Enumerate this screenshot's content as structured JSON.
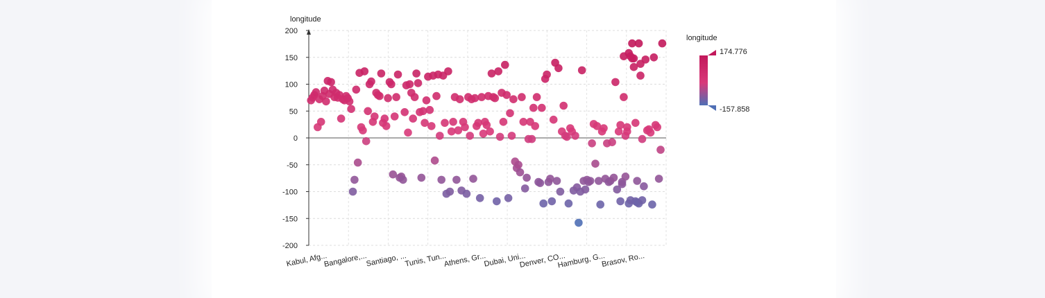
{
  "chart_data": {
    "type": "scatter",
    "ylabel": "longitude",
    "ylim": [
      -200,
      200
    ],
    "yticks": [
      200,
      150,
      100,
      50,
      0,
      -50,
      -100,
      -150,
      -200
    ],
    "category_labels": [
      "Kabul, Afg...",
      "Bangalore,...",
      "Santiago, ...",
      "Tunis, Tun...",
      "Athens, Gr...",
      "Dubai, Uni...",
      "Denver, CO...",
      "Hamburg, G...",
      "Brasov, Ro..."
    ],
    "n_categories": 200,
    "grid": true,
    "legend": {
      "title": "longitude",
      "max_label": "174.776",
      "min_label": "-157.858",
      "max": 174.776,
      "min": -157.858,
      "color_high": "#c2185b",
      "color_mid": "#d83a7a",
      "color_low": "#4f6fb5"
    },
    "points": [
      [
        1,
        70
      ],
      [
        2,
        75
      ],
      [
        3,
        80
      ],
      [
        4,
        85
      ],
      [
        5,
        20
      ],
      [
        6,
        72
      ],
      [
        7,
        30
      ],
      [
        8,
        78
      ],
      [
        9,
        88
      ],
      [
        10,
        68
      ],
      [
        11,
        106
      ],
      [
        12,
        82
      ],
      [
        13,
        104
      ],
      [
        14,
        90
      ],
      [
        15,
        76
      ],
      [
        16,
        84
      ],
      [
        17,
        75
      ],
      [
        18,
        80
      ],
      [
        19,
        36
      ],
      [
        20,
        72
      ],
      [
        21,
        70
      ],
      [
        22,
        78
      ],
      [
        23,
        74
      ],
      [
        24,
        68
      ],
      [
        25,
        54
      ],
      [
        26,
        -100
      ],
      [
        27,
        -78
      ],
      [
        28,
        90
      ],
      [
        29,
        -46
      ],
      [
        30,
        121
      ],
      [
        31,
        20
      ],
      [
        32,
        14
      ],
      [
        33,
        124
      ],
      [
        34,
        -6
      ],
      [
        35,
        50
      ],
      [
        36,
        100
      ],
      [
        37,
        105
      ],
      [
        38,
        30
      ],
      [
        39,
        40
      ],
      [
        40,
        84
      ],
      [
        41,
        80
      ],
      [
        42,
        78
      ],
      [
        43,
        120
      ],
      [
        44,
        28
      ],
      [
        45,
        36
      ],
      [
        46,
        22
      ],
      [
        47,
        74
      ],
      [
        48,
        104
      ],
      [
        49,
        100
      ],
      [
        50,
        -68
      ],
      [
        51,
        40
      ],
      [
        52,
        76
      ],
      [
        53,
        118
      ],
      [
        54,
        -74
      ],
      [
        55,
        -72
      ],
      [
        56,
        -78
      ],
      [
        57,
        48
      ],
      [
        58,
        98
      ],
      [
        59,
        10
      ],
      [
        60,
        100
      ],
      [
        61,
        84
      ],
      [
        62,
        36
      ],
      [
        63,
        76
      ],
      [
        64,
        120
      ],
      [
        65,
        102
      ],
      [
        66,
        48
      ],
      [
        67,
        -74
      ],
      [
        68,
        50
      ],
      [
        69,
        28
      ],
      [
        70,
        70
      ],
      [
        71,
        114
      ],
      [
        72,
        52
      ],
      [
        73,
        22
      ],
      [
        74,
        116
      ],
      [
        75,
        -42
      ],
      [
        76,
        78
      ],
      [
        77,
        118
      ],
      [
        78,
        4
      ],
      [
        79,
        -78
      ],
      [
        80,
        116
      ],
      [
        81,
        28
      ],
      [
        82,
        -104
      ],
      [
        83,
        124
      ],
      [
        84,
        -100
      ],
      [
        85,
        12
      ],
      [
        86,
        30
      ],
      [
        87,
        76
      ],
      [
        88,
        -78
      ],
      [
        89,
        14
      ],
      [
        90,
        72
      ],
      [
        91,
        -98
      ],
      [
        92,
        30
      ],
      [
        93,
        20
      ],
      [
        94,
        -104
      ],
      [
        95,
        76
      ],
      [
        96,
        4
      ],
      [
        97,
        72
      ],
      [
        98,
        -76
      ],
      [
        99,
        74
      ],
      [
        100,
        22
      ],
      [
        101,
        28
      ],
      [
        102,
        -112
      ],
      [
        103,
        76
      ],
      [
        104,
        8
      ],
      [
        105,
        30
      ],
      [
        106,
        24
      ],
      [
        107,
        78
      ],
      [
        108,
        12
      ],
      [
        109,
        120
      ],
      [
        110,
        76
      ],
      [
        111,
        74
      ],
      [
        112,
        -118
      ],
      [
        113,
        124
      ],
      [
        114,
        2
      ],
      [
        115,
        84
      ],
      [
        116,
        30
      ],
      [
        117,
        136
      ],
      [
        118,
        80
      ],
      [
        119,
        -112
      ],
      [
        120,
        46
      ],
      [
        121,
        4
      ],
      [
        122,
        72
      ],
      [
        123,
        -44
      ],
      [
        124,
        -56
      ],
      [
        125,
        -50
      ],
      [
        126,
        -64
      ],
      [
        127,
        76
      ],
      [
        128,
        30
      ],
      [
        129,
        -94
      ],
      [
        130,
        -74
      ],
      [
        131,
        -2
      ],
      [
        132,
        30
      ],
      [
        133,
        -2
      ],
      [
        134,
        56
      ],
      [
        135,
        22
      ],
      [
        136,
        76
      ],
      [
        137,
        -82
      ],
      [
        138,
        -84
      ],
      [
        139,
        56
      ],
      [
        140,
        -122
      ],
      [
        141,
        110
      ],
      [
        142,
        118
      ],
      [
        143,
        -82
      ],
      [
        144,
        -76
      ],
      [
        145,
        -118
      ],
      [
        146,
        34
      ],
      [
        147,
        140
      ],
      [
        148,
        -80
      ],
      [
        149,
        130
      ],
      [
        150,
        -100
      ],
      [
        151,
        12
      ],
      [
        152,
        60
      ],
      [
        153,
        4
      ],
      [
        154,
        2
      ],
      [
        155,
        -122
      ],
      [
        156,
        18
      ],
      [
        157,
        12
      ],
      [
        158,
        -98
      ],
      [
        159,
        4
      ],
      [
        160,
        -92
      ],
      [
        161,
        -158
      ],
      [
        162,
        -100
      ],
      [
        163,
        126
      ],
      [
        164,
        -80
      ],
      [
        165,
        -96
      ],
      [
        166,
        -78
      ],
      [
        167,
        -82
      ],
      [
        168,
        -80
      ],
      [
        169,
        -10
      ],
      [
        170,
        26
      ],
      [
        171,
        -48
      ],
      [
        172,
        22
      ],
      [
        173,
        -80
      ],
      [
        174,
        -124
      ],
      [
        175,
        12
      ],
      [
        176,
        18
      ],
      [
        177,
        -76
      ],
      [
        178,
        -10
      ],
      [
        179,
        -82
      ],
      [
        180,
        -80
      ],
      [
        181,
        -8
      ],
      [
        182,
        -74
      ],
      [
        183,
        104
      ],
      [
        184,
        -96
      ],
      [
        185,
        12
      ],
      [
        186,
        -118
      ],
      [
        187,
        -86
      ],
      [
        188,
        152
      ],
      [
        189,
        4
      ],
      [
        190,
        20
      ],
      [
        191,
        -122
      ],
      [
        192,
        -116
      ],
      [
        193,
        176
      ],
      [
        194,
        148
      ],
      [
        195,
        -118
      ],
      [
        196,
        -120
      ],
      [
        197,
        -122
      ],
      [
        198,
        116
      ],
      [
        199,
        -116
      ]
    ],
    "extra_points": [
      [
        186,
        24
      ],
      [
        187,
        -82
      ],
      [
        188,
        76
      ],
      [
        189,
        -72
      ],
      [
        190,
        12
      ],
      [
        191,
        158
      ],
      [
        192,
        152
      ],
      [
        193,
        148
      ],
      [
        194,
        132
      ],
      [
        195,
        28
      ],
      [
        196,
        -80
      ],
      [
        197,
        176
      ],
      [
        198,
        138
      ],
      [
        199,
        -2
      ],
      [
        200,
        -90
      ],
      [
        201,
        146
      ],
      [
        202,
        14
      ],
      [
        203,
        16
      ],
      [
        204,
        10
      ],
      [
        205,
        -124
      ],
      [
        206,
        150
      ],
      [
        207,
        24
      ],
      [
        208,
        20
      ],
      [
        209,
        -76
      ],
      [
        210,
        -22
      ],
      [
        211,
        176
      ]
    ]
  }
}
